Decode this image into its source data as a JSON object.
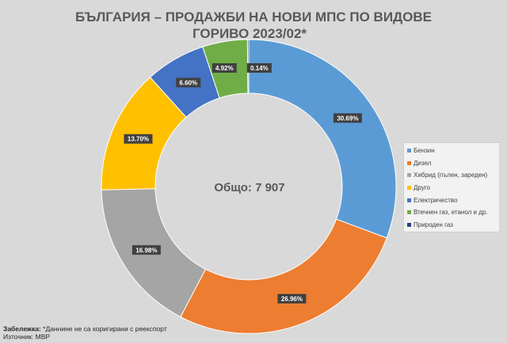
{
  "chart_data": {
    "type": "donut",
    "title_line1": "БЪЛГАРИЯ – ПРОДАЖБИ НА НОВИ МПС ПО ВИДОВЕ",
    "title_line2": "ГОРИВО 2023/02*",
    "center_label": "Общо: 7 907",
    "series": [
      {
        "name": "Бензин",
        "value": 30.69,
        "label": "30.69%",
        "color": "#5b9bd5"
      },
      {
        "name": "Дизел",
        "value": 26.96,
        "label": "26.96%",
        "color": "#ed7d31"
      },
      {
        "name": "Хибрид (пълен, зареден)",
        "value": 16.98,
        "label": "16.98%",
        "color": "#a5a5a5"
      },
      {
        "name": "Друго",
        "value": 13.7,
        "label": "13.70%",
        "color": "#ffc000"
      },
      {
        "name": "Електричество",
        "value": 6.6,
        "label": "6.60%",
        "color": "#4472c4"
      },
      {
        "name": "Втечнен газ, етанол и др.",
        "value": 4.92,
        "label": "4.92%",
        "color": "#70ad47"
      },
      {
        "name": "Природен газ",
        "value": 0.14,
        "label": "0.14%",
        "color": "#264478"
      }
    ],
    "legend_position": "right"
  },
  "footnote": {
    "note_label": "Забележка:",
    "note_text": " *Даннине не са коригирани с реекспорт",
    "source": "Източник: МВР"
  }
}
